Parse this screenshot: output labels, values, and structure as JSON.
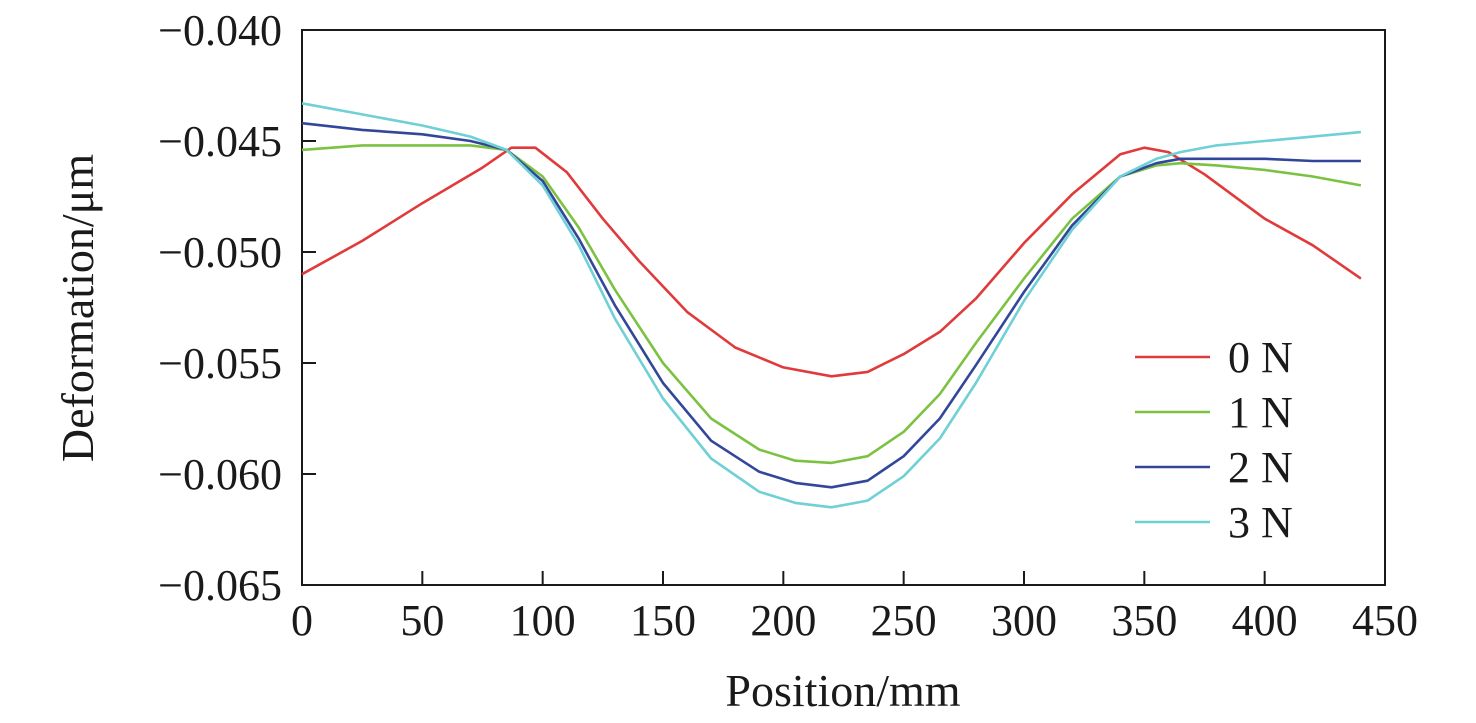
{
  "chart_data": {
    "type": "line",
    "title": "",
    "xlabel": "Position/mm",
    "ylabel": "Deformation/μm",
    "xlim": [
      0,
      450
    ],
    "ylim": [
      -0.065,
      -0.04
    ],
    "xticks": [
      0,
      50,
      100,
      150,
      200,
      250,
      300,
      350,
      400,
      450
    ],
    "xtick_labels": [
      "0",
      "50",
      "100",
      "150",
      "200",
      "250",
      "300",
      "350",
      "400",
      "450"
    ],
    "yticks": [
      -0.04,
      -0.045,
      -0.05,
      -0.055,
      -0.06,
      -0.065
    ],
    "ytick_labels": [
      "−0.040",
      "−0.045",
      "−0.050",
      "−0.055",
      "−0.060",
      "−0.065"
    ],
    "grid": false,
    "legend_position": "bottom-right",
    "series": [
      {
        "name": "0 N",
        "color": "#e03a3a",
        "x": [
          0,
          25,
          50,
          75,
          87,
          97,
          110,
          125,
          140,
          160,
          180,
          200,
          220,
          235,
          250,
          265,
          280,
          300,
          320,
          340,
          350,
          360,
          375,
          400,
          420,
          440
        ],
        "y": [
          -0.051,
          -0.0495,
          -0.0478,
          -0.0462,
          -0.0453,
          -0.0453,
          -0.0464,
          -0.0485,
          -0.0504,
          -0.0527,
          -0.0543,
          -0.0552,
          -0.0556,
          -0.0554,
          -0.0546,
          -0.0536,
          -0.0521,
          -0.0496,
          -0.0474,
          -0.0456,
          -0.0453,
          -0.0455,
          -0.0465,
          -0.0485,
          -0.0497,
          -0.0512
        ]
      },
      {
        "name": "1 N",
        "color": "#7cc242",
        "x": [
          0,
          25,
          50,
          70,
          85,
          100,
          115,
          130,
          150,
          170,
          190,
          205,
          220,
          235,
          250,
          265,
          280,
          300,
          320,
          340,
          355,
          365,
          380,
          400,
          420,
          440
        ],
        "y": [
          -0.0454,
          -0.0452,
          -0.0452,
          -0.0452,
          -0.0454,
          -0.0466,
          -0.0489,
          -0.0517,
          -0.055,
          -0.0575,
          -0.0589,
          -0.0594,
          -0.0595,
          -0.0592,
          -0.0581,
          -0.0564,
          -0.0541,
          -0.0512,
          -0.0485,
          -0.0466,
          -0.0461,
          -0.046,
          -0.0461,
          -0.0463,
          -0.0466,
          -0.047
        ]
      },
      {
        "name": "2 N",
        "color": "#33479a",
        "x": [
          0,
          25,
          50,
          70,
          85,
          100,
          115,
          130,
          150,
          170,
          190,
          205,
          220,
          235,
          250,
          265,
          280,
          300,
          320,
          340,
          355,
          365,
          380,
          400,
          420,
          440
        ],
        "y": [
          -0.0442,
          -0.0445,
          -0.0447,
          -0.045,
          -0.0454,
          -0.0468,
          -0.0494,
          -0.0524,
          -0.0559,
          -0.0585,
          -0.0599,
          -0.0604,
          -0.0606,
          -0.0603,
          -0.0592,
          -0.0575,
          -0.0551,
          -0.0518,
          -0.0488,
          -0.0466,
          -0.046,
          -0.0458,
          -0.0458,
          -0.0458,
          -0.0459,
          -0.0459
        ]
      },
      {
        "name": "3 N",
        "color": "#6fd0d6",
        "x": [
          0,
          25,
          50,
          70,
          85,
          100,
          115,
          130,
          150,
          170,
          190,
          205,
          220,
          235,
          250,
          265,
          280,
          300,
          320,
          340,
          355,
          365,
          380,
          400,
          420,
          440
        ],
        "y": [
          -0.0433,
          -0.0438,
          -0.0443,
          -0.0448,
          -0.0454,
          -0.047,
          -0.0497,
          -0.053,
          -0.0566,
          -0.0593,
          -0.0608,
          -0.0613,
          -0.0615,
          -0.0612,
          -0.0601,
          -0.0584,
          -0.0559,
          -0.0522,
          -0.049,
          -0.0466,
          -0.0458,
          -0.0455,
          -0.0452,
          -0.045,
          -0.0448,
          -0.0446
        ]
      }
    ]
  }
}
